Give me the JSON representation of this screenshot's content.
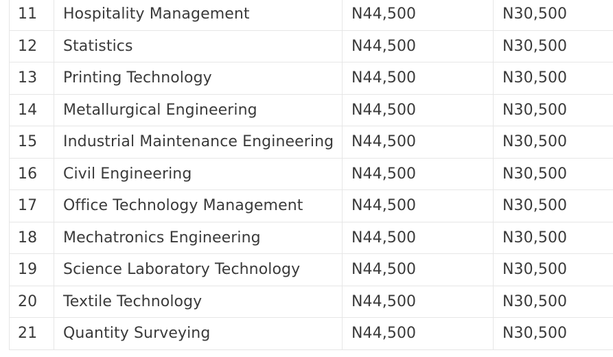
{
  "table": {
    "rows": [
      {
        "sn": "11",
        "course": "Hospitality Management",
        "fee_a": "N44,500",
        "fee_b": "N30,500"
      },
      {
        "sn": "12",
        "course": "Statistics",
        "fee_a": "N44,500",
        "fee_b": "N30,500"
      },
      {
        "sn": "13",
        "course": "Printing Technology",
        "fee_a": "N44,500",
        "fee_b": "N30,500"
      },
      {
        "sn": "14",
        "course": "Metallurgical Engineering",
        "fee_a": "N44,500",
        "fee_b": "N30,500"
      },
      {
        "sn": "15",
        "course": "Industrial Maintenance Engineering",
        "fee_a": "N44,500",
        "fee_b": "N30,500"
      },
      {
        "sn": "16",
        "course": "Civil Engineering",
        "fee_a": "N44,500",
        "fee_b": "N30,500"
      },
      {
        "sn": "17",
        "course": "Office Technology Management",
        "fee_a": "N44,500",
        "fee_b": "N30,500"
      },
      {
        "sn": "18",
        "course": "Mechatronics Engineering",
        "fee_a": "N44,500",
        "fee_b": "N30,500"
      },
      {
        "sn": "19",
        "course": "Science Laboratory Technology",
        "fee_a": "N44,500",
        "fee_b": "N30,500"
      },
      {
        "sn": "20",
        "course": "Textile Technology",
        "fee_a": "N44,500",
        "fee_b": "N30,500"
      },
      {
        "sn": "21",
        "course": "Quantity Surveying",
        "fee_a": "N44,500",
        "fee_b": "N30,500"
      }
    ]
  }
}
